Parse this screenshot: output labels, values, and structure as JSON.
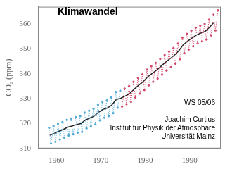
{
  "chart_data": {
    "type": "line",
    "title": "Klimawandel",
    "y_label": "CO₂ (ppm)",
    "annotations": [
      "WS 05/06",
      "",
      "Joachim Curtius",
      "Institut für Physik der Atmosphäre",
      "Universität Mainz"
    ],
    "xlim": [
      1956,
      1997
    ],
    "xticks": [
      1960,
      1970,
      1980,
      1990
    ],
    "ylim": [
      310,
      367
    ],
    "yticks": [
      310,
      320,
      330,
      340,
      350,
      360
    ],
    "grid": false,
    "series": [
      {
        "color": "#4fa9d6",
        "marker": "circle",
        "line_style": "dotted",
        "x": [
          1958.37,
          1958.79,
          1959.37,
          1959.79,
          1960.37,
          1960.79,
          1961.37,
          1961.79,
          1962.37,
          1962.79,
          1963.37,
          1963.79,
          1964.37,
          1964.79,
          1965.37,
          1965.79,
          1966.37,
          1966.79,
          1967.37,
          1967.79,
          1968.37,
          1968.79,
          1969.37,
          1969.79,
          1970.37,
          1970.79,
          1971.37,
          1971.79,
          1972.37,
          1972.79,
          1973.37,
          1973.79,
          1974.37
        ],
        "values": [
          318.3,
          312.0,
          319.0,
          312.7,
          319.9,
          313.6,
          320.6,
          314.3,
          321.5,
          315.2,
          322.0,
          315.7,
          322.6,
          316.3,
          323.0,
          316.7,
          324.4,
          318.1,
          325.2,
          318.9,
          326.0,
          319.7,
          327.6,
          321.3,
          328.7,
          322.4,
          329.3,
          323.0,
          330.5,
          324.2,
          332.7,
          326.4,
          333.2
        ]
      },
      {
        "color": "#d4496a",
        "marker": "circle",
        "line_style": "dotted",
        "x": [
          1974.79,
          1975.37,
          1975.79,
          1976.37,
          1976.79,
          1977.37,
          1977.79,
          1978.37,
          1978.79,
          1979.37,
          1979.79,
          1980.37,
          1980.79,
          1981.37,
          1981.79,
          1982.37,
          1982.79,
          1983.37,
          1983.79,
          1984.37,
          1984.79,
          1985.37,
          1985.79,
          1986.37,
          1986.79,
          1987.37,
          1987.79,
          1988.37,
          1988.79,
          1989.37,
          1989.79,
          1990.37,
          1990.79,
          1991.37,
          1991.79,
          1992.37,
          1992.79,
          1993.37,
          1993.79,
          1994.37,
          1994.79,
          1995.37,
          1995.79,
          1996.37
        ],
        "values": [
          326.9,
          334.1,
          327.8,
          335.1,
          328.8,
          336.8,
          330.5,
          338.4,
          332.1,
          339.8,
          333.5,
          341.7,
          335.4,
          343.1,
          336.8,
          344.4,
          338.1,
          346.0,
          339.7,
          347.6,
          341.3,
          349.0,
          342.7,
          350.4,
          344.1,
          352.2,
          345.9,
          354.6,
          348.3,
          356.1,
          349.8,
          357.4,
          351.1,
          358.6,
          352.3,
          359.4,
          353.1,
          360.1,
          353.8,
          361.8,
          355.5,
          363.8,
          357.5,
          365.6
        ]
      },
      {
        "color": "#222222",
        "marker": "none",
        "line_style": "solid",
        "x": [
          1958.5,
          1959.5,
          1960.5,
          1961.5,
          1962.5,
          1963.5,
          1964.5,
          1965.5,
          1966.5,
          1967.5,
          1968.5,
          1969.5,
          1970.5,
          1971.5,
          1972.5,
          1973.5,
          1974.5,
          1975.5,
          1976.5,
          1977.5,
          1978.5,
          1979.5,
          1980.5,
          1981.5,
          1982.5,
          1983.5,
          1984.5,
          1985.5,
          1986.5,
          1987.5,
          1988.5,
          1989.5,
          1990.5,
          1991.5,
          1992.5,
          1993.5,
          1994.5,
          1995.5
        ],
        "values": [
          315.3,
          316.0,
          316.9,
          317.6,
          318.5,
          319.0,
          319.6,
          320.0,
          321.4,
          322.2,
          323.0,
          324.6,
          325.7,
          326.3,
          327.5,
          329.7,
          330.2,
          331.1,
          332.1,
          333.8,
          335.4,
          336.8,
          338.7,
          340.1,
          341.4,
          343.0,
          344.6,
          346.0,
          347.4,
          349.2,
          351.6,
          353.1,
          354.4,
          355.6,
          356.4,
          357.1,
          358.8,
          360.8
        ]
      }
    ]
  }
}
